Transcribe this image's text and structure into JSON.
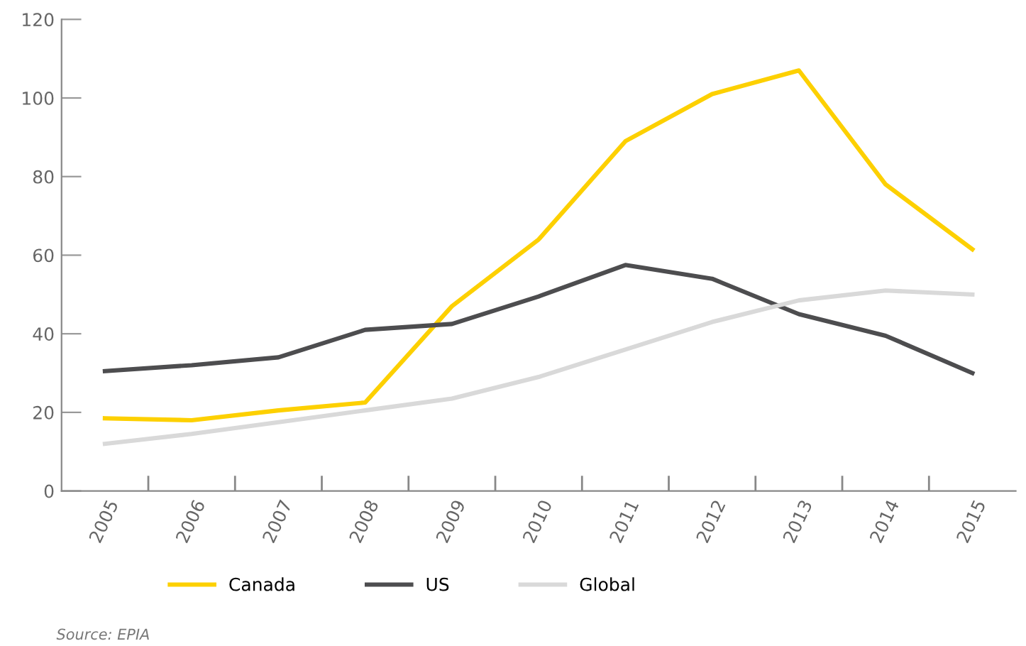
{
  "chart_data": {
    "type": "line",
    "categories": [
      "2005",
      "2006",
      "2007",
      "2008",
      "2009",
      "2010",
      "2011",
      "2012",
      "2013",
      "2014",
      "2015"
    ],
    "series": [
      {
        "name": "Canada",
        "color": "#fdd000",
        "values": [
          18.5,
          18,
          20.5,
          22.5,
          47,
          64,
          89,
          101,
          107,
          78,
          61.5
        ]
      },
      {
        "name": "US",
        "color": "#4d4d4f",
        "values": [
          30.5,
          32,
          34,
          41,
          42.5,
          49.5,
          57.5,
          54,
          45,
          39.5,
          30
        ]
      },
      {
        "name": "Global",
        "color": "#d9d9d9",
        "values": [
          12,
          14.5,
          17.5,
          20.5,
          23.5,
          29,
          36,
          43,
          48.5,
          51,
          50
        ]
      }
    ],
    "ylim": [
      0,
      120
    ],
    "yticks": [
      0,
      20,
      40,
      60,
      80,
      100,
      120
    ],
    "grid": false,
    "legend": "bottom",
    "marker": "none",
    "line_style": "solid",
    "annotations": [
      "Source: EPIA"
    ]
  }
}
